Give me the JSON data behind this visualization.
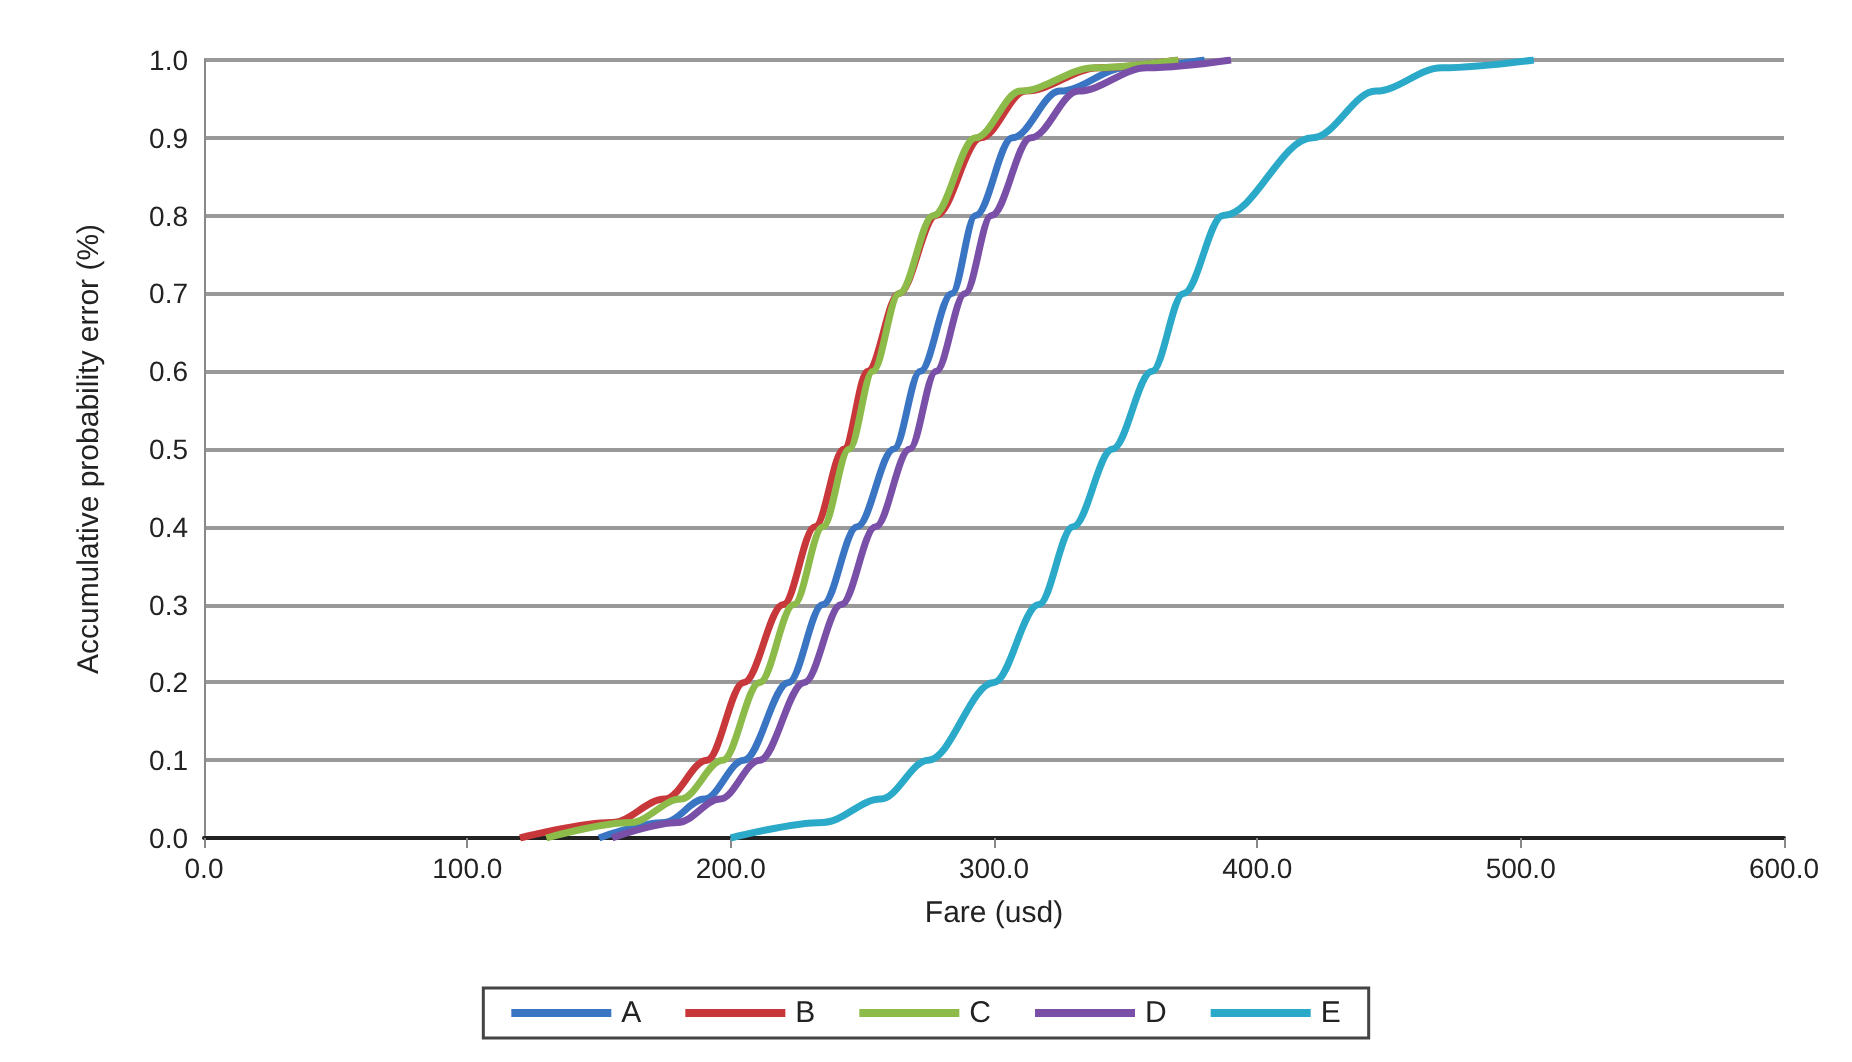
{
  "chart_data": {
    "type": "line",
    "xlabel": "Fare (usd)",
    "ylabel": "Accumulative probability error (%)",
    "xlim": [
      0,
      600
    ],
    "xticks": [
      {
        "value": 0,
        "label": "0.0"
      },
      {
        "value": 100,
        "label": "100.0"
      },
      {
        "value": 200,
        "label": "200.0"
      },
      {
        "value": 300,
        "label": "300.0"
      },
      {
        "value": 400,
        "label": "400.0"
      },
      {
        "value": 500,
        "label": "500.0"
      },
      {
        "value": 600,
        "label": "600.0"
      }
    ],
    "ylim": [
      0,
      1
    ],
    "yticks": [
      {
        "value": 0,
        "label": "0.0"
      },
      {
        "value": 0.1,
        "label": "0.1"
      },
      {
        "value": 0.2,
        "label": "0.2"
      },
      {
        "value": 0.3,
        "label": "0.3"
      },
      {
        "value": 0.4,
        "label": "0.4"
      },
      {
        "value": 0.5,
        "label": "0.5"
      },
      {
        "value": 0.6,
        "label": "0.6"
      },
      {
        "value": 0.7,
        "label": "0.7"
      },
      {
        "value": 0.8,
        "label": "0.8"
      },
      {
        "value": 0.9,
        "label": "0.9"
      },
      {
        "value": 1,
        "label": "1.0"
      }
    ],
    "grid": "y",
    "legend": "bottom",
    "marker": "none",
    "line_style": "solid",
    "series": [
      {
        "name": "A",
        "color": "#3a75c4",
        "x": [
          150,
          175,
          190,
          205,
          222,
          235,
          248,
          262,
          272,
          284,
          293,
          307,
          325,
          350,
          380
        ],
        "values": [
          0,
          0.02,
          0.05,
          0.1,
          0.2,
          0.3,
          0.4,
          0.5,
          0.6,
          0.7,
          0.8,
          0.9,
          0.96,
          0.99,
          1
        ]
      },
      {
        "name": "B",
        "color": "#c8383a",
        "x": [
          120,
          155,
          175,
          191,
          205,
          220,
          232,
          243,
          252,
          264,
          278,
          295,
          312,
          340,
          370
        ],
        "values": [
          0,
          0.02,
          0.05,
          0.1,
          0.2,
          0.3,
          0.4,
          0.5,
          0.6,
          0.7,
          0.8,
          0.9,
          0.96,
          0.99,
          1
        ]
      },
      {
        "name": "C",
        "color": "#8cbb4a",
        "x": [
          130,
          162,
          181,
          197,
          211,
          224,
          235,
          245,
          254,
          264,
          277,
          293,
          310,
          338,
          370
        ],
        "values": [
          0,
          0.02,
          0.05,
          0.1,
          0.2,
          0.3,
          0.4,
          0.5,
          0.6,
          0.7,
          0.8,
          0.9,
          0.96,
          0.99,
          1
        ]
      },
      {
        "name": "D",
        "color": "#7a4fa8",
        "x": [
          155,
          180,
          196,
          211,
          228,
          242,
          255,
          268,
          278,
          289,
          299,
          314,
          332,
          358,
          390
        ],
        "values": [
          0,
          0.02,
          0.05,
          0.1,
          0.2,
          0.3,
          0.4,
          0.5,
          0.6,
          0.7,
          0.8,
          0.9,
          0.96,
          0.99,
          1
        ]
      },
      {
        "name": "E",
        "color": "#2aa9c8",
        "x": [
          200,
          235,
          257,
          275,
          300,
          317,
          330,
          345,
          360,
          372,
          387,
          421,
          445,
          470,
          505
        ],
        "values": [
          0,
          0.02,
          0.05,
          0.1,
          0.2,
          0.3,
          0.4,
          0.5,
          0.6,
          0.7,
          0.8,
          0.9,
          0.96,
          0.99,
          1
        ]
      }
    ]
  }
}
